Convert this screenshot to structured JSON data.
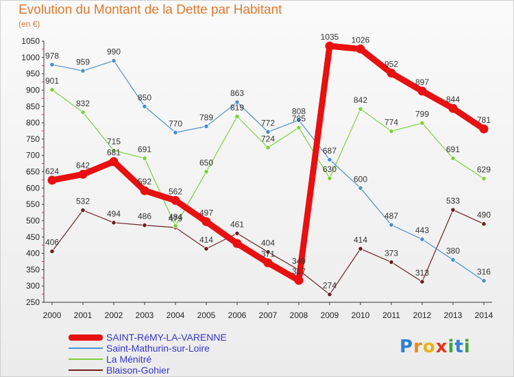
{
  "chart_data": {
    "type": "line",
    "title": "Evolution du Montant de la Dette par Habitant",
    "subtitle": "(en €)",
    "x": [
      "2000",
      "2001",
      "2002",
      "2003",
      "2004",
      "2005",
      "2006",
      "2007",
      "2008",
      "2009",
      "2010",
      "2011",
      "2012",
      "2013",
      "2014"
    ],
    "ylim": [
      250,
      1050
    ],
    "yticks": [
      250,
      300,
      350,
      400,
      450,
      500,
      550,
      600,
      650,
      700,
      750,
      800,
      850,
      900,
      950,
      1000,
      1050
    ],
    "grid": false,
    "legend_position": "bottom-left",
    "series": [
      {
        "name": "SAINT-RéMY-LA-VARENNE",
        "color": "#e81010",
        "x": [
          "2000",
          "2001",
          "2002",
          "2003",
          "2004",
          "2005",
          "2006",
          "2007",
          "2008",
          "2009",
          "2010",
          "2011",
          "2012",
          "2013",
          "2014"
        ],
        "values": [
          624,
          642,
          681,
          592,
          562,
          497,
          430,
          371,
          317,
          1035,
          1026,
          952,
          897,
          844,
          781
        ],
        "labels": [
          "624",
          "642",
          "681",
          "592",
          "562",
          "497",
          "",
          "371",
          "317",
          "1035",
          "1026",
          "952",
          "897",
          "844",
          "781"
        ]
      },
      {
        "name": "Saint-Mathurin-sur-Loire",
        "color": "#4a8fcf",
        "x": [
          "2000",
          "2001",
          "2002",
          "2003",
          "2004",
          "2005",
          "2006",
          "2007",
          "2008",
          "2009",
          "2010",
          "2011",
          "2012",
          "2013",
          "2014"
        ],
        "values": [
          978,
          959,
          990,
          850,
          770,
          789,
          863,
          772,
          808,
          687,
          600,
          487,
          443,
          380,
          316
        ],
        "labels": [
          "978",
          "959",
          "990",
          "850",
          "770",
          "789",
          "863",
          "772",
          "808",
          "687",
          "600",
          "487",
          "443",
          "380",
          "316"
        ]
      },
      {
        "name": "La Ménitré",
        "color": "#7dcf3a",
        "x": [
          "2000",
          "2001",
          "2002",
          "2003",
          "2004",
          "2005",
          "2006",
          "2007",
          "2008",
          "2009",
          "2010",
          "2011",
          "2012",
          "2013",
          "2014"
        ],
        "values": [
          901,
          832,
          715,
          691,
          484,
          650,
          819,
          724,
          785,
          630,
          842,
          774,
          799,
          691,
          629
        ],
        "labels": [
          "901",
          "832",
          "715",
          "691",
          "484",
          "650",
          "819",
          "724",
          "785",
          "630",
          "842",
          "774",
          "799",
          "691",
          "629"
        ]
      },
      {
        "name": "Blaison-Gohier",
        "color": "#6b1f22",
        "x": [
          "2000",
          "2001",
          "2002",
          "2003",
          "2004",
          "2005",
          "2006",
          "2007",
          "2008",
          "2009",
          "2010",
          "2011",
          "2012",
          "2013",
          "2014"
        ],
        "values": [
          406,
          532,
          494,
          486,
          479,
          414,
          461,
          404,
          349,
          274,
          414,
          373,
          313,
          533,
          490
        ],
        "labels": [
          "406",
          "532",
          "494",
          "486",
          "479",
          "414",
          "461",
          "404",
          "349",
          "274",
          "414",
          "373",
          "313",
          "533",
          "490"
        ]
      }
    ]
  },
  "logo": {
    "letters": [
      "P",
      "r",
      "o",
      "x",
      "i",
      "t",
      "i"
    ],
    "colors": [
      "#2c7fd6",
      "#e88a1a",
      "#e8b21a",
      "#e8341a",
      "#3aa63a",
      "#2c7fd6",
      "#3aa63a"
    ]
  }
}
